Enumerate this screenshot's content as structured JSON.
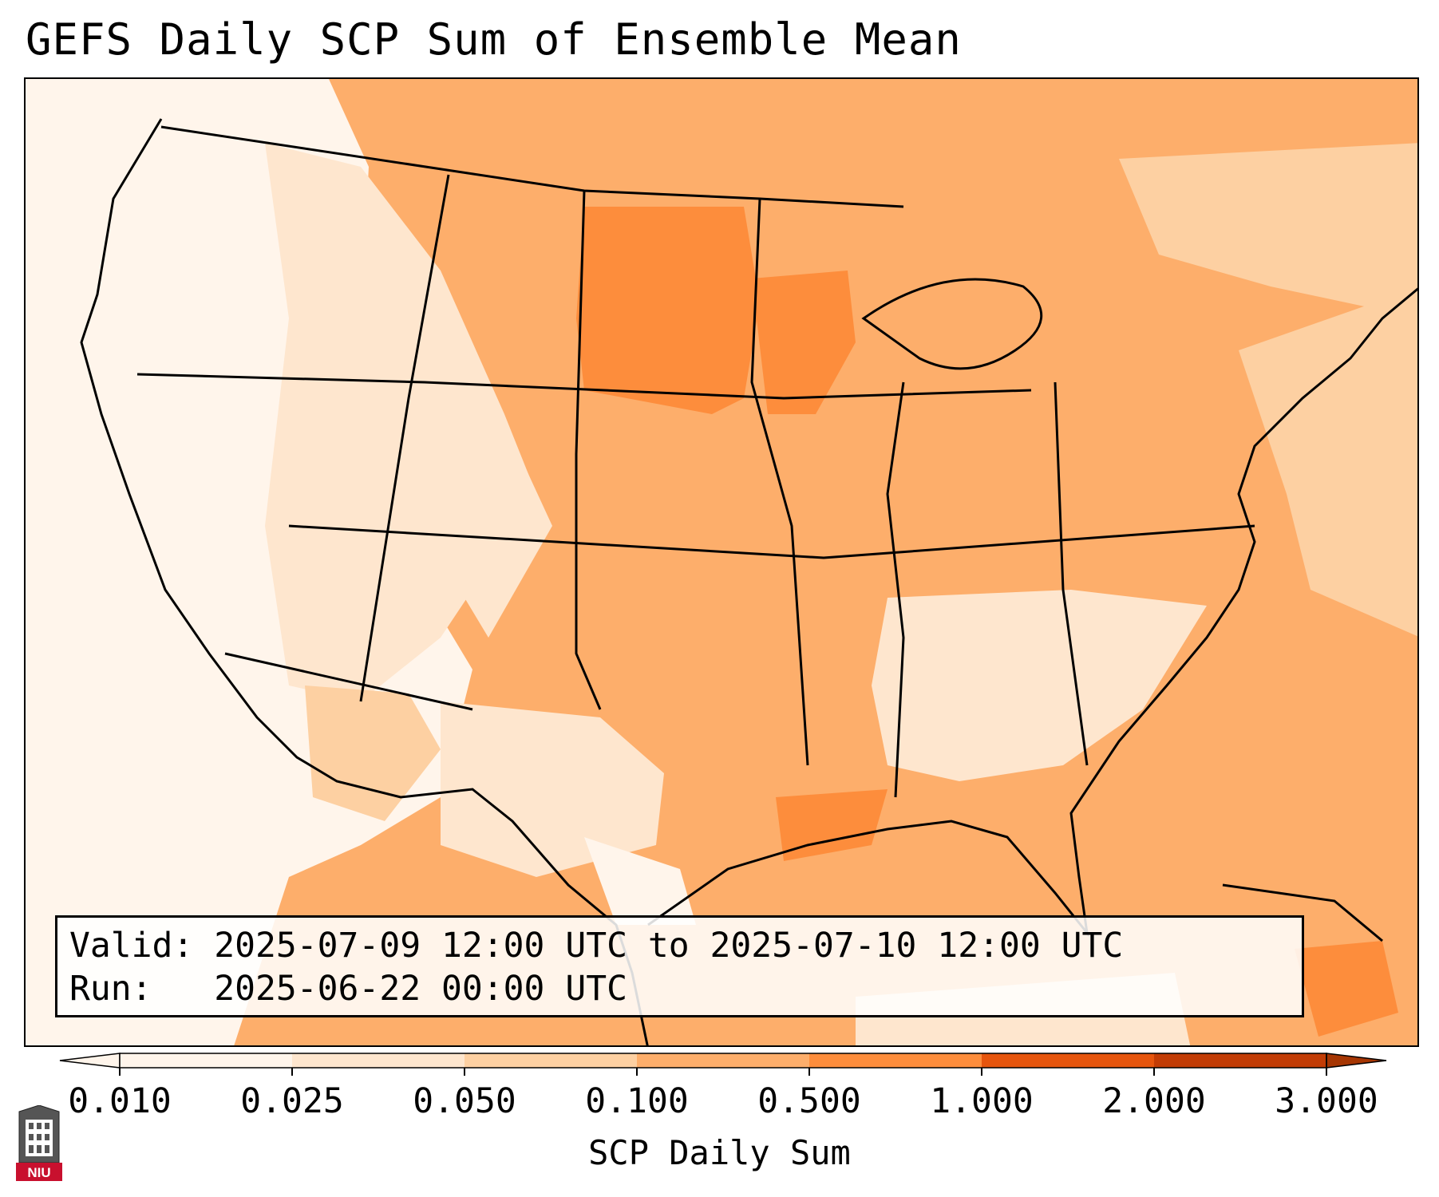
{
  "title": "GEFS Daily SCP Sum of Ensemble Mean",
  "info": {
    "valid": "Valid: 2025-07-09 12:00 UTC to 2025-07-10 12:00 UTC",
    "run": "Run:   2025-06-22 00:00 UTC"
  },
  "colorbar": {
    "label": "SCP Daily Sum",
    "ticks": [
      "0.010",
      "0.025",
      "0.050",
      "0.100",
      "0.500",
      "1.000",
      "2.000",
      "3.000"
    ],
    "colors": [
      "#fff5eb",
      "#fee6ce",
      "#fdd0a2",
      "#fdae6b",
      "#fd8d3c",
      "#e6550d",
      "#c23c05",
      "#a63603"
    ]
  },
  "logo": {
    "text": "NIU",
    "icon": "university-building-icon"
  }
}
